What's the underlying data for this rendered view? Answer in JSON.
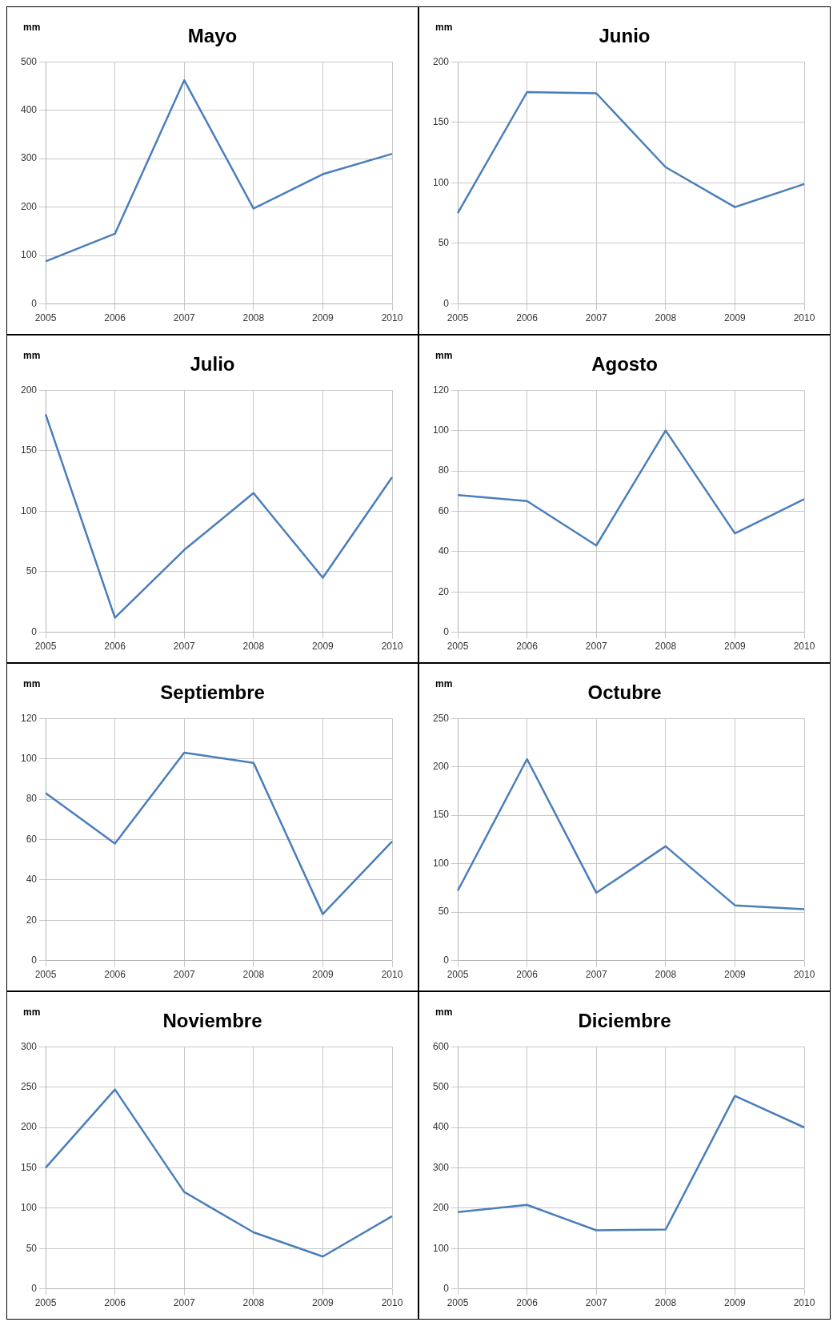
{
  "chart_data": [
    {
      "type": "line",
      "title": "Mayo",
      "ylabel": "mm",
      "categories": [
        "2005",
        "2006",
        "2007",
        "2008",
        "2009",
        "2010"
      ],
      "values": [
        88,
        145,
        462,
        197,
        268,
        310
      ],
      "color": "#4a7ebb",
      "ylim": [
        0,
        500
      ],
      "yticks": [
        0,
        100,
        200,
        300,
        400,
        500
      ],
      "grid": true,
      "marker": "none",
      "legend": false
    },
    {
      "type": "line",
      "title": "Junio",
      "ylabel": "mm",
      "categories": [
        "2005",
        "2006",
        "2007",
        "2008",
        "2009",
        "2010"
      ],
      "values": [
        75,
        175,
        174,
        113,
        80,
        99
      ],
      "color": "#4a7ebb",
      "ylim": [
        0,
        200
      ],
      "yticks": [
        0,
        50,
        100,
        150,
        200
      ],
      "grid": true,
      "marker": "none",
      "legend": false
    },
    {
      "type": "line",
      "title": "Julio",
      "ylabel": "mm",
      "categories": [
        "2005",
        "2006",
        "2007",
        "2008",
        "2009",
        "2010"
      ],
      "values": [
        180,
        12,
        68,
        115,
        45,
        128
      ],
      "color": "#4a7ebb",
      "ylim": [
        0,
        200
      ],
      "yticks": [
        0,
        50,
        100,
        150,
        200
      ],
      "grid": true,
      "marker": "none",
      "legend": false
    },
    {
      "type": "line",
      "title": "Agosto",
      "ylabel": "mm",
      "categories": [
        "2005",
        "2006",
        "2007",
        "2008",
        "2009",
        "2010"
      ],
      "values": [
        68,
        65,
        43,
        100,
        49,
        66
      ],
      "color": "#4a7ebb",
      "ylim": [
        0,
        120
      ],
      "yticks": [
        0,
        20,
        40,
        60,
        80,
        100,
        120
      ],
      "grid": true,
      "marker": "none",
      "legend": false
    },
    {
      "type": "line",
      "title": "Septiembre",
      "ylabel": "mm",
      "categories": [
        "2005",
        "2006",
        "2007",
        "2008",
        "2009",
        "2010"
      ],
      "values": [
        83,
        58,
        103,
        98,
        23,
        59
      ],
      "color": "#4a7ebb",
      "ylim": [
        0,
        120
      ],
      "yticks": [
        0,
        20,
        40,
        60,
        80,
        100,
        120
      ],
      "grid": true,
      "marker": "none",
      "legend": false
    },
    {
      "type": "line",
      "title": "Octubre",
      "ylabel": "mm",
      "categories": [
        "2005",
        "2006",
        "2007",
        "2008",
        "2009",
        "2010"
      ],
      "values": [
        72,
        208,
        70,
        118,
        57,
        53
      ],
      "color": "#4a7ebb",
      "ylim": [
        0,
        250
      ],
      "yticks": [
        0,
        50,
        100,
        150,
        200,
        250
      ],
      "grid": true,
      "marker": "none",
      "legend": false
    },
    {
      "type": "line",
      "title": "Noviembre",
      "ylabel": "mm",
      "categories": [
        "2005",
        "2006",
        "2007",
        "2008",
        "2009",
        "2010"
      ],
      "values": [
        150,
        247,
        120,
        70,
        40,
        90
      ],
      "color": "#4a7ebb",
      "ylim": [
        0,
        300
      ],
      "yticks": [
        0,
        50,
        100,
        150,
        200,
        250,
        300
      ],
      "grid": true,
      "marker": "none",
      "legend": false
    },
    {
      "type": "line",
      "title": "Diciembre",
      "ylabel": "mm",
      "categories": [
        "2005",
        "2006",
        "2007",
        "2008",
        "2009",
        "2010"
      ],
      "values": [
        190,
        208,
        145,
        147,
        478,
        400
      ],
      "color": "#4a7ebb",
      "ylim": [
        0,
        600
      ],
      "yticks": [
        0,
        100,
        200,
        300,
        400,
        500,
        600
      ],
      "grid": true,
      "marker": "none",
      "legend": false
    }
  ]
}
